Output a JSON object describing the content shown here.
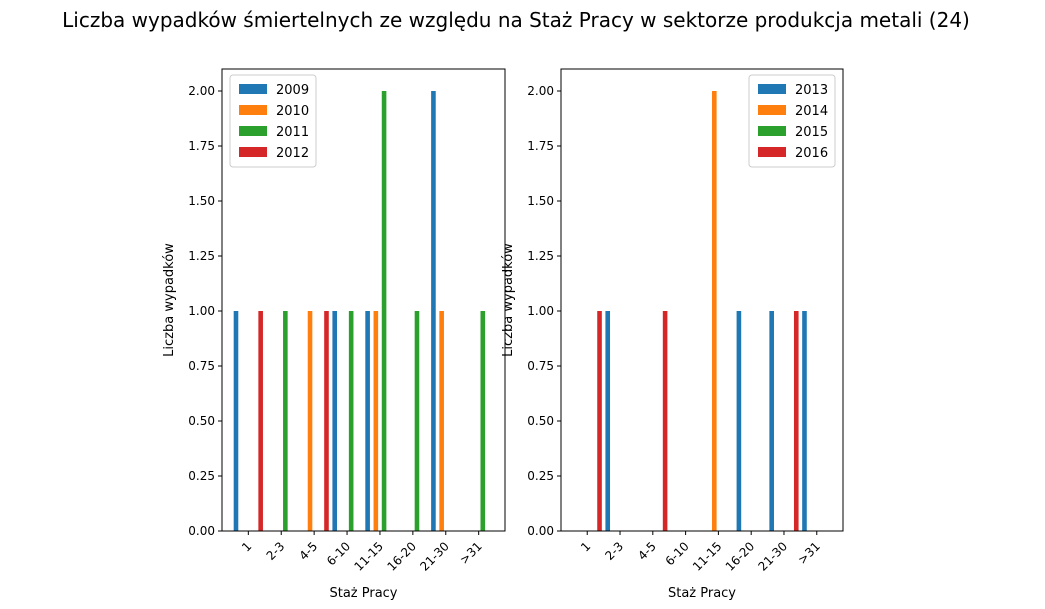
{
  "figure": {
    "title": "Liczba wypadków śmiertelnych ze względu na Staż Pracy w sektorze produkcja metali (24)"
  },
  "colors": {
    "2009": "#1f77b4",
    "2010": "#ff7f0e",
    "2011": "#2ca02c",
    "2012": "#d62728",
    "2013": "#1f77b4",
    "2014": "#ff7f0e",
    "2015": "#2ca02c",
    "2016": "#d62728"
  },
  "chart_data": [
    {
      "type": "bar",
      "categories": [
        "1",
        "2-3",
        "4-5",
        "6-10",
        "11-15",
        "16-20",
        "21-30",
        ">31"
      ],
      "series": [
        {
          "name": "2009",
          "values": [
            1,
            0,
            0,
            1,
            1,
            0,
            2,
            0
          ]
        },
        {
          "name": "2010",
          "values": [
            0,
            0,
            1,
            0,
            1,
            0,
            1,
            0
          ]
        },
        {
          "name": "2011",
          "values": [
            0,
            1,
            0,
            1,
            2,
            1,
            0,
            1
          ]
        },
        {
          "name": "2012",
          "values": [
            1,
            0,
            1,
            0,
            0,
            0,
            0,
            0
          ]
        }
      ],
      "xlabel": "Staż Pracy",
      "ylabel": "Liczba wypadków",
      "ylim": [
        0,
        2.1
      ],
      "yticks": [
        "0.00",
        "0.25",
        "0.50",
        "0.75",
        "1.00",
        "1.25",
        "1.50",
        "1.75",
        "2.00"
      ],
      "legend": "top-left",
      "grid": false
    },
    {
      "type": "bar",
      "categories": [
        "1",
        "2-3",
        "4-5",
        "6-10",
        "11-15",
        "16-20",
        "21-30",
        ">31"
      ],
      "series": [
        {
          "name": "2013",
          "values": [
            0,
            1,
            0,
            0,
            0,
            1,
            1,
            1
          ]
        },
        {
          "name": "2014",
          "values": [
            0,
            0,
            0,
            0,
            2,
            0,
            0,
            0
          ]
        },
        {
          "name": "2015",
          "values": [
            0,
            0,
            0,
            0,
            0,
            0,
            0,
            0
          ]
        },
        {
          "name": "2016",
          "values": [
            1,
            0,
            1,
            0,
            0,
            0,
            1,
            0
          ]
        }
      ],
      "xlabel": "Staż Pracy",
      "ylabel": "Liczba wypadków",
      "ylim": [
        0,
        2.1
      ],
      "yticks": [
        "0.00",
        "0.25",
        "0.50",
        "0.75",
        "1.00",
        "1.25",
        "1.50",
        "1.75",
        "2.00"
      ],
      "legend": "top-right",
      "grid": false
    }
  ]
}
